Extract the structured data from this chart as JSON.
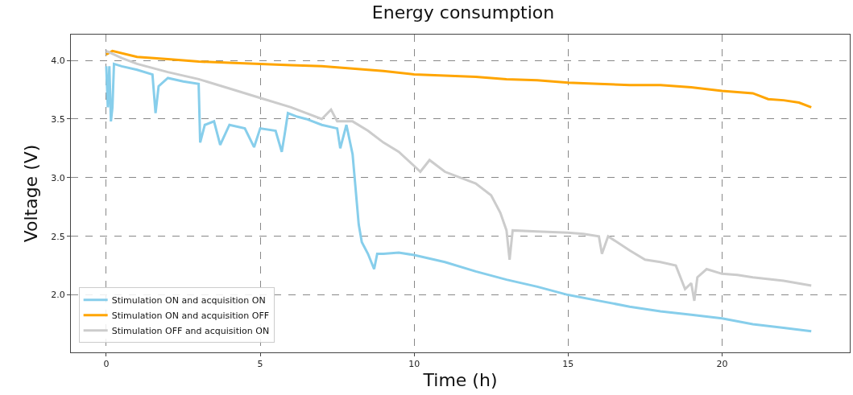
{
  "chart_data": {
    "type": "line",
    "title": "Energy consumption",
    "xlabel": "Time (h)",
    "ylabel": "Voltage (V)",
    "xlim": [
      -1.15,
      24.15
    ],
    "ylim": [
      1.51,
      4.22
    ],
    "xticks": [
      0,
      5,
      10,
      15,
      20
    ],
    "yticks": [
      {
        "value": 2,
        "label": "2.0"
      },
      2.5,
      {
        "value": 3,
        "label": "3.0"
      },
      3.5,
      {
        "value": 4,
        "label": "4.0"
      }
    ],
    "grid": true,
    "legend": "bottom left",
    "line_style": "solid",
    "marker": "none",
    "series": [
      {
        "name": "Stimulation ON and acquisition ON",
        "color": "#87ceeb",
        "x": [
          0,
          0.05,
          0.1,
          0.15,
          0.2,
          0.25,
          0.5,
          1,
          1.5,
          1.6,
          1.7,
          2,
          2.5,
          3,
          3.05,
          3.2,
          3.5,
          3.7,
          4,
          4.5,
          4.8,
          5,
          5.5,
          5.7,
          5.8,
          5.9,
          6.2,
          6.5,
          7,
          7.5,
          7.6,
          7.8,
          8,
          8.1,
          8.2,
          8.3,
          8.5,
          8.7,
          8.8,
          9,
          9.5,
          10,
          11,
          12,
          13,
          14,
          15,
          16,
          17,
          18,
          19,
          20,
          21,
          22,
          22.9
        ],
        "values": [
          3.95,
          3.6,
          3.95,
          3.48,
          3.6,
          3.97,
          3.95,
          3.92,
          3.88,
          3.55,
          3.78,
          3.85,
          3.82,
          3.8,
          3.3,
          3.45,
          3.48,
          3.28,
          3.45,
          3.42,
          3.26,
          3.42,
          3.4,
          3.22,
          3.38,
          3.55,
          3.52,
          3.5,
          3.45,
          3.42,
          3.25,
          3.45,
          3.2,
          2.9,
          2.6,
          2.45,
          2.35,
          2.22,
          2.35,
          2.35,
          2.36,
          2.34,
          2.28,
          2.2,
          2.13,
          2.07,
          2.0,
          1.95,
          1.9,
          1.86,
          1.83,
          1.8,
          1.75,
          1.72,
          1.69
        ]
      },
      {
        "name": "Stimulation ON and acquisition OFF",
        "color": "#ffa500",
        "x": [
          0,
          0.2,
          1,
          2,
          3,
          4,
          5,
          6,
          7,
          8,
          9,
          10,
          11,
          12,
          13,
          14,
          15,
          16,
          17,
          18,
          19,
          20,
          21,
          21.5,
          22,
          22.5,
          22.9
        ],
        "values": [
          4.05,
          4.08,
          4.03,
          4.01,
          3.99,
          3.98,
          3.97,
          3.96,
          3.95,
          3.93,
          3.91,
          3.88,
          3.87,
          3.86,
          3.84,
          3.83,
          3.81,
          3.8,
          3.79,
          3.79,
          3.77,
          3.74,
          3.72,
          3.67,
          3.66,
          3.64,
          3.6
        ]
      },
      {
        "name": "Stimulation OFF and acquisition ON",
        "color": "#cccccc",
        "x": [
          0,
          0.5,
          1,
          2,
          3,
          4,
          5,
          6,
          7,
          7.3,
          7.5,
          8,
          8.5,
          9,
          9.5,
          10,
          10.2,
          10.5,
          11,
          12,
          12.5,
          12.8,
          13,
          13.1,
          13.2,
          14,
          15,
          15.5,
          16,
          16.1,
          16.3,
          17,
          17.5,
          18,
          18.5,
          18.8,
          19,
          19.1,
          19.2,
          19.5,
          20,
          20.5,
          21,
          22,
          22.9
        ],
        "values": [
          4.08,
          4.02,
          3.97,
          3.9,
          3.84,
          3.76,
          3.68,
          3.6,
          3.5,
          3.58,
          3.48,
          3.48,
          3.4,
          3.3,
          3.22,
          3.1,
          3.05,
          3.15,
          3.05,
          2.95,
          2.85,
          2.7,
          2.55,
          2.3,
          2.55,
          2.54,
          2.53,
          2.52,
          2.5,
          2.35,
          2.5,
          2.38,
          2.3,
          2.28,
          2.25,
          2.05,
          2.1,
          1.95,
          2.15,
          2.22,
          2.18,
          2.17,
          2.15,
          2.12,
          2.08
        ]
      }
    ]
  }
}
